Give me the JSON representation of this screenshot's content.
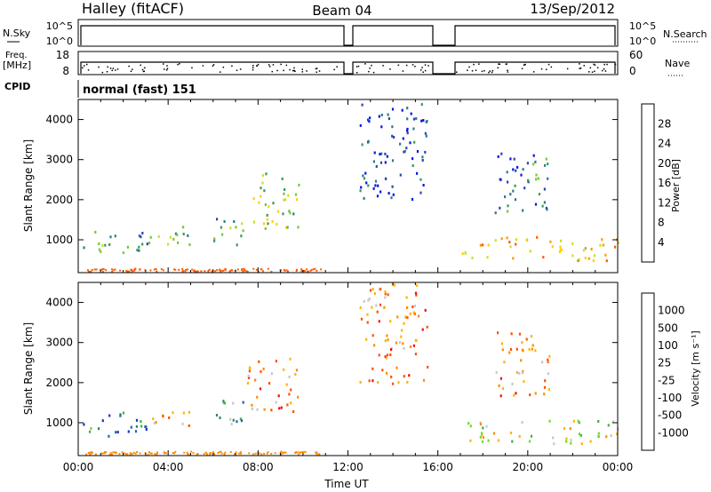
{
  "header": {
    "station": "Halley (fitACF)",
    "beam": "Beam 04",
    "date": "13/Sep/2012"
  },
  "strips": {
    "nsky_label": "N.Sky",
    "nsky_ticks": [
      "10^5",
      "10^0"
    ],
    "nsearch_label": "N.Search",
    "freq_label": "Freq.",
    "freq_unit": "[MHz]",
    "freq_ticks": [
      "18",
      "8"
    ],
    "nave_label": "Nave",
    "nave_ticks": [
      "60",
      "0"
    ],
    "cpid_label": "CPID",
    "cpid_value": "normal (fast) 151"
  },
  "chart_data": [
    {
      "type": "heatmap",
      "name": "power",
      "ylabel": "Slant Range [km]",
      "xlabel": "Time UT",
      "xlim": [
        "00:00",
        "24:00"
      ],
      "ylim": [
        180,
        4500
      ],
      "y_ticks": [
        "1000",
        "2000",
        "3000",
        "4000"
      ],
      "colorbar_label": "Power [dB]",
      "colorbar_ticks": [
        "4",
        "8",
        "12",
        "16",
        "20",
        "24",
        "28"
      ],
      "colors": [
        "#0a14e6",
        "#2846b4",
        "#2e7a8a",
        "#3a9a5a",
        "#72c83a",
        "#cce01e",
        "#ffd000",
        "#ff9a00",
        "#ff5a00",
        "#f01010"
      ],
      "echo_regions": [
        {
          "t0": 0.2,
          "t1": 3.2,
          "r0": 650,
          "r1": 1300,
          "level": 3
        },
        {
          "t0": 3.2,
          "t1": 5.0,
          "r0": 800,
          "r1": 1350,
          "level": 4
        },
        {
          "t0": 6.0,
          "t1": 7.5,
          "r0": 800,
          "r1": 1600,
          "level": 3
        },
        {
          "t0": 7.5,
          "t1": 9.8,
          "r0": 1300,
          "r1": 2700,
          "level": 4
        },
        {
          "t0": 12.5,
          "t1": 15.5,
          "r0": 2000,
          "r1": 4500,
          "level": 1
        },
        {
          "t0": 17.0,
          "t1": 24.0,
          "r0": 500,
          "r1": 1100,
          "level": 6
        },
        {
          "t0": 18.5,
          "t1": 21.0,
          "r0": 1700,
          "r1": 3300,
          "level": 2
        }
      ]
    },
    {
      "type": "heatmap",
      "name": "velocity",
      "ylabel": "Slant Range [km]",
      "xlabel": "Time UT",
      "xlim": [
        "00:00",
        "24:00"
      ],
      "ylim": [
        180,
        4500
      ],
      "y_ticks": [
        "1000",
        "2000",
        "3000",
        "4000"
      ],
      "x_ticks": [
        "00:00",
        "04:00",
        "08:00",
        "12:00",
        "16:00",
        "20:00",
        "00:00"
      ],
      "colorbar_label": "Velocity [m s⁻¹]",
      "colorbar_ticks": [
        "1000",
        "500",
        "100",
        "25",
        "-25",
        "-100",
        "-500",
        "-1000"
      ],
      "colors": [
        "#1e32c8",
        "#1e64b4",
        "#2e8a5a",
        "#3cb43c",
        "#6edc2a",
        "#c8c8c8",
        "#ffb400",
        "#ff8c00",
        "#ff5000",
        "#f01010"
      ],
      "echo_regions": [
        {
          "t0": 0.2,
          "t1": 3.2,
          "r0": 650,
          "r1": 1300,
          "level": 2
        },
        {
          "t0": 3.2,
          "t1": 5.0,
          "r0": 800,
          "r1": 1350,
          "level": 6
        },
        {
          "t0": 6.0,
          "t1": 7.5,
          "r0": 800,
          "r1": 1600,
          "level": 3
        },
        {
          "t0": 7.5,
          "t1": 9.8,
          "r0": 1300,
          "r1": 2700,
          "level": 7
        },
        {
          "t0": 12.5,
          "t1": 15.5,
          "r0": 2000,
          "r1": 4500,
          "level": 7
        },
        {
          "t0": 17.0,
          "t1": 24.0,
          "r0": 500,
          "r1": 1100,
          "level": 5
        },
        {
          "t0": 18.5,
          "t1": 21.0,
          "r0": 1700,
          "r1": 3300,
          "level": 7
        }
      ]
    }
  ]
}
